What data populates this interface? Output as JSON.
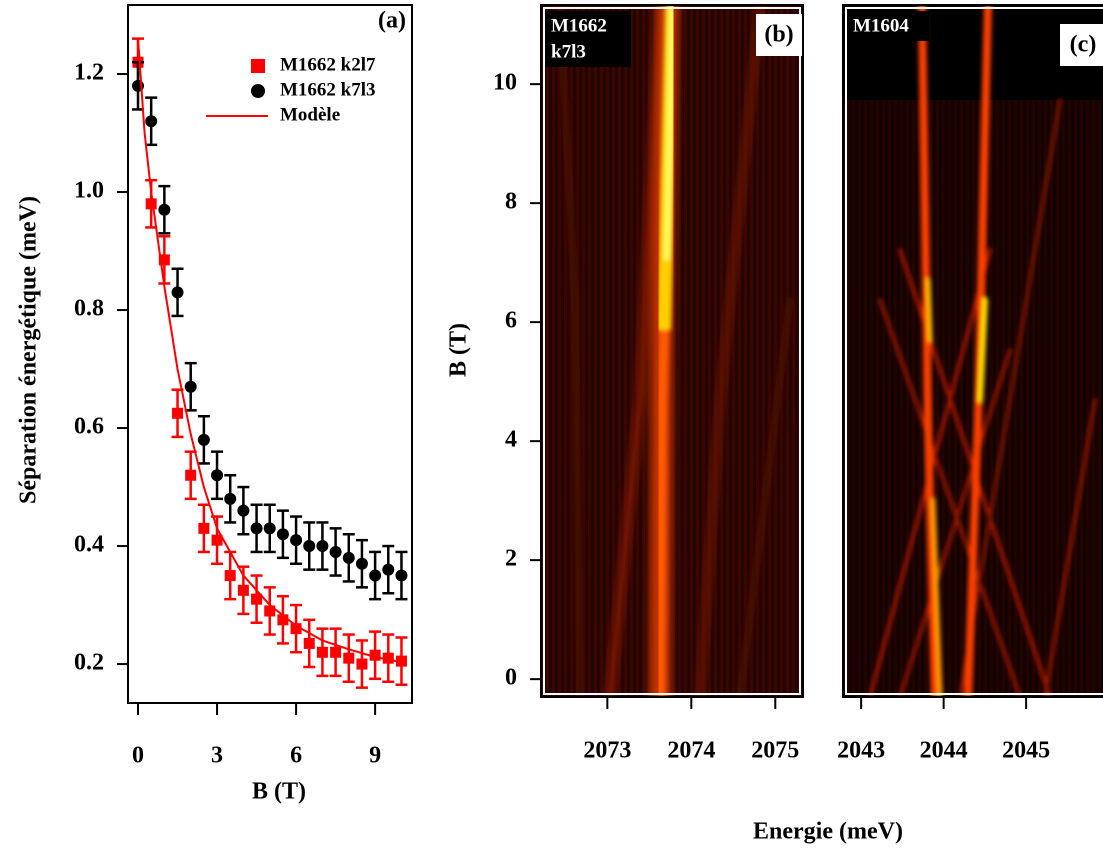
{
  "chart_data": [
    {
      "type": "scatter",
      "panel_label": "(a)",
      "xlabel": "B (T)",
      "ylabel": "Séparation énergétique (meV)",
      "xlim": [
        -0.38,
        10.4
      ],
      "ylim": [
        0.134,
        1.317
      ],
      "xticks": [
        0,
        3,
        6,
        9
      ],
      "yticks": [
        0.2,
        0.4,
        0.6,
        0.8,
        {
          "value": 1,
          "label": "1.0"
        },
        1.2
      ],
      "legend": "upper right",
      "series": [
        {
          "name": "M1662  k2l7",
          "color": "#ff0000",
          "style": "square",
          "x": [
            0,
            0.5,
            1,
            1.5,
            2,
            2.5,
            3,
            3.5,
            4,
            4.5,
            5,
            5.5,
            6,
            6.5,
            7,
            7.5,
            8,
            8.5,
            9,
            9.5,
            10
          ],
          "values": [
            1.22,
            0.98,
            0.885,
            0.625,
            0.52,
            0.43,
            0.41,
            0.35,
            0.325,
            0.31,
            0.29,
            0.275,
            0.26,
            0.235,
            0.22,
            0.22,
            0.21,
            0.2,
            0.215,
            0.21,
            0.205
          ],
          "errors": [
            0.04,
            0.04,
            0.04,
            0.04,
            0.04,
            0.04,
            0.04,
            0.04,
            0.04,
            0.04,
            0.04,
            0.04,
            0.04,
            0.04,
            0.04,
            0.04,
            0.04,
            0.04,
            0.04,
            0.04,
            0.04
          ]
        },
        {
          "name": "M1662 k7l3",
          "color": "#000000",
          "style": "circle",
          "x": [
            0,
            0.5,
            1,
            1.5,
            2,
            2.5,
            3,
            3.5,
            4,
            4.5,
            5,
            5.5,
            6,
            6.5,
            7,
            7.5,
            8,
            8.5,
            9,
            9.5,
            10
          ],
          "values": [
            1.18,
            1.12,
            0.97,
            0.83,
            0.67,
            0.58,
            0.52,
            0.48,
            0.46,
            0.43,
            0.43,
            0.42,
            0.41,
            0.4,
            0.4,
            0.39,
            0.38,
            0.37,
            0.35,
            0.36,
            0.35
          ],
          "errors": [
            0.04,
            0.04,
            0.04,
            0.04,
            0.04,
            0.04,
            0.04,
            0.04,
            0.04,
            0.04,
            0.04,
            0.04,
            0.04,
            0.04,
            0.04,
            0.04,
            0.04,
            0.04,
            0.04,
            0.04,
            0.04
          ]
        },
        {
          "name": "Modèle",
          "color": "#ff0000",
          "style": "line",
          "x": [
            0,
            0.25,
            0.5,
            1,
            1.5,
            2,
            2.5,
            3,
            3.5,
            4,
            5,
            6,
            7,
            8,
            9,
            10
          ],
          "values": [
            1.26,
            1.1,
            1.0,
            0.84,
            0.7,
            0.59,
            0.5,
            0.43,
            0.39,
            0.35,
            0.3,
            0.265,
            0.24,
            0.225,
            0.212,
            0.203
          ]
        }
      ]
    },
    {
      "type": "heatmap",
      "panel_label": "(b)",
      "sample": [
        "M1662",
        "k7l3"
      ],
      "ylabel": "B (T)",
      "xlim": [
        2072.21,
        2075.33
      ],
      "ylim": [
        -0.3,
        11.33
      ],
      "xticks": [
        2073,
        2074,
        2075
      ],
      "yticks": [
        0,
        2,
        4,
        6,
        8,
        10
      ]
    },
    {
      "type": "heatmap",
      "panel_label": "(c)",
      "sample": [
        "M1604"
      ],
      "xlim": [
        2042.78,
        2045.92
      ],
      "ylim": [
        -0.3,
        11.33
      ],
      "xticks": [
        2043,
        2044,
        2045
      ]
    }
  ],
  "shared_xlabel": "Energie (meV)"
}
